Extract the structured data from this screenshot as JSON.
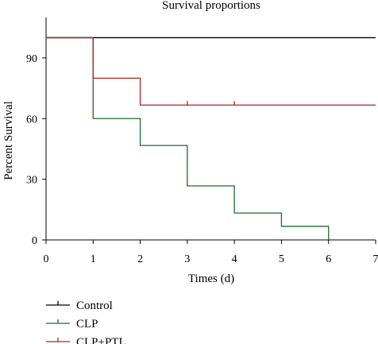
{
  "chart_data": {
    "type": "line",
    "step": true,
    "title": "Survival proportions",
    "xlabel": "Times (d)",
    "ylabel": "Percent Survival",
    "xlim": [
      0,
      7
    ],
    "ylim": [
      0,
      110
    ],
    "xticks": [
      0,
      1,
      2,
      3,
      4,
      5,
      6,
      7
    ],
    "yticks": [
      0,
      30,
      60,
      90
    ],
    "grid": false,
    "legend_position": "bottom-left",
    "series": [
      {
        "name": "Control",
        "color": "#000000",
        "x": [
          0,
          7
        ],
        "y": [
          100,
          100
        ],
        "censored": []
      },
      {
        "name": "CLP",
        "color": "#1e6b2a",
        "x": [
          0,
          1,
          2,
          3,
          4,
          5,
          6
        ],
        "y": [
          100,
          60,
          46.7,
          26.7,
          13.3,
          6.7,
          0
        ],
        "censored": []
      },
      {
        "name": "CLP+PTL",
        "color": "#b22222",
        "x": [
          0,
          1,
          2,
          7
        ],
        "y": [
          100,
          80,
          66.7,
          66.7
        ],
        "censored": [
          3,
          4
        ]
      }
    ]
  }
}
